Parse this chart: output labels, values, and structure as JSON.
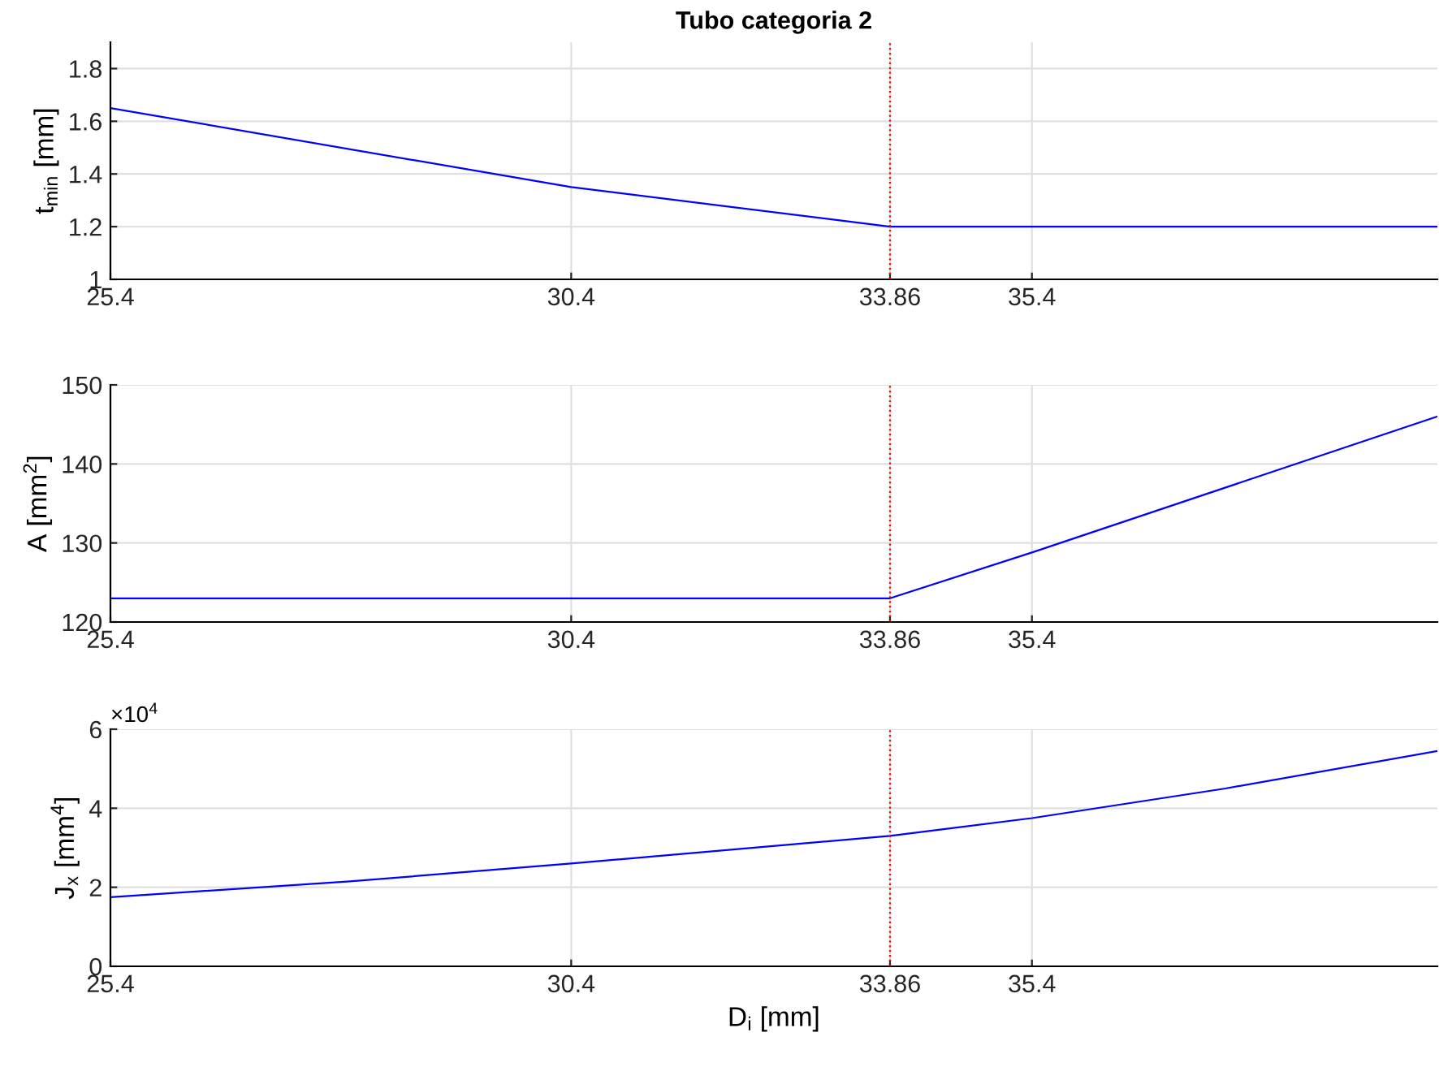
{
  "chart_data": [
    {
      "type": "line",
      "title": "Tubo categoria 2",
      "ylabel": "t$_{min}$ [mm]",
      "x": [
        25.4,
        30.4,
        33.86,
        39.8
      ],
      "series": [
        {
          "color": "#0000ff",
          "values": [
            1.65,
            1.35,
            1.2,
            1.2
          ]
        }
      ],
      "xlim": [
        25.4,
        39.8
      ],
      "xticks": [
        25.4,
        30.4,
        33.86,
        35.4
      ],
      "ylim": [
        1,
        1.9
      ],
      "yticks": [
        1,
        1.2,
        1.4,
        1.6,
        1.8
      ],
      "grid": true,
      "ref_lines": [
        {
          "axis": "x",
          "value": 33.86,
          "color": "#ff0000",
          "line_style": "dotted"
        }
      ]
    },
    {
      "type": "line",
      "ylabel": "A [mm$^{2}$]",
      "x": [
        25.4,
        33.86,
        35.4,
        39.8
      ],
      "series": [
        {
          "color": "#0000ff",
          "values": [
            123,
            123,
            128.8,
            146
          ]
        }
      ],
      "xlim": [
        25.4,
        39.8
      ],
      "xticks": [
        25.4,
        30.4,
        33.86,
        35.4
      ],
      "ylim": [
        120,
        150
      ],
      "yticks": [
        120,
        130,
        140,
        150
      ],
      "grid": true,
      "ref_lines": [
        {
          "axis": "x",
          "value": 33.86,
          "color": "#ff0000",
          "line_style": "dotted"
        }
      ]
    },
    {
      "type": "line",
      "ylabel": "J$_{x}$ [mm$^{4}$]",
      "xlabel": "D$_{i}$ [mm]",
      "x": [
        25.4,
        28,
        30.4,
        33.86,
        35.4,
        37.5,
        39.8
      ],
      "series": [
        {
          "color": "#0000ff",
          "values": [
            1.75,
            2.15,
            2.6,
            3.3,
            3.75,
            4.5,
            5.45
          ]
        }
      ],
      "xlim": [
        25.4,
        39.8
      ],
      "xticks": [
        25.4,
        30.4,
        33.86,
        35.4
      ],
      "ylim": [
        0,
        6
      ],
      "yticks": [
        0,
        2,
        4,
        6
      ],
      "grid": true,
      "annotations": [
        "×10$^{4}$"
      ],
      "ref_lines": [
        {
          "axis": "x",
          "value": 33.86,
          "color": "#ff0000",
          "line_style": "dotted"
        }
      ]
    }
  ]
}
